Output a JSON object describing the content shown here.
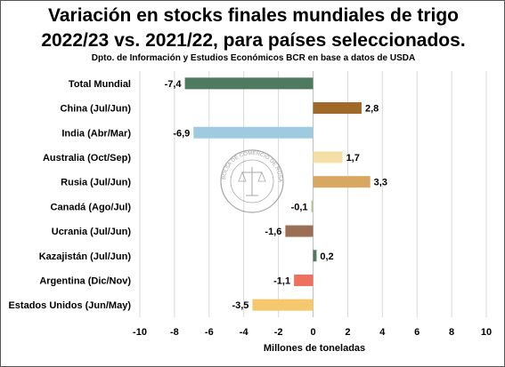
{
  "header": {
    "title_line1": "Variación en stocks finales mundiales de trigo",
    "title_line2": "2022/23 vs. 2021/22, para países seleccionados.",
    "subtitle": "Dpto. de Información y Estudios Económicos BCR en base a datos de USDA"
  },
  "seal": {
    "text": "BOLSA DE COMERCIO DE ROSARIO"
  },
  "chart_data": {
    "type": "bar",
    "orientation": "horizontal",
    "title": "Variación en stocks finales mundiales de trigo 2022/23 vs. 2021/22, para países seleccionados.",
    "subtitle": "Dpto. de Información y Estudios Económicos BCR en base a datos de USDA",
    "xlabel": "Millones de toneladas",
    "ylabel": "",
    "xlim": [
      -10,
      10
    ],
    "xticks": [
      -10,
      -8,
      -6,
      -4,
      -2,
      0,
      2,
      4,
      6,
      8,
      10
    ],
    "grid": true,
    "legend": "none",
    "categories": [
      "Total Mundial",
      "China (Jul/Jun)",
      "India (Abr/Mar)",
      "Australia (Oct/Sep)",
      "Rusia (Jul/Jun)",
      "Canadá (Ago/Jul)",
      "Ucrania (Jul/Jun)",
      "Kazajistán (Jul/Jun)",
      "Argentina (Dic/Nov)",
      "Estados Unidos (Jun/May)"
    ],
    "values": [
      -7.4,
      2.8,
      -6.9,
      1.7,
      3.3,
      -0.1,
      -1.6,
      0.2,
      -1.1,
      -3.5
    ],
    "value_labels": [
      "-7,4",
      "2,8",
      "-6,9",
      "1,7",
      "3,3",
      "-0,1",
      "-1,6",
      "0,2",
      "-1,1",
      "-3,5"
    ],
    "colors": [
      "#4e7a5f",
      "#a0692a",
      "#9ecbe0",
      "#f4e0a6",
      "#d8a862",
      "#b5c49a",
      "#9b6e55",
      "#4e7a5f",
      "#ee705e",
      "#f6c86e"
    ]
  }
}
